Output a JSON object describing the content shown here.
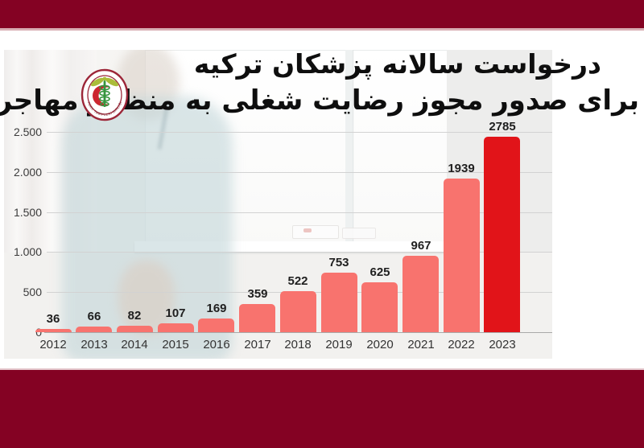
{
  "title": {
    "line1": "درخواست سالانه پزشکان ترکیه",
    "line2": "برای صدور مجوز رضایت شغلی به منظور مهاجرت"
  },
  "logo": {
    "ring_text": "TÜRK TABİPLERİ BİRLİĞİ"
  },
  "colors": {
    "frame_maroon": "#840223",
    "bar_salmon": "#f8736e",
    "bar_highlight_red": "#e11419",
    "gridline_gray": "#d2d2d2"
  },
  "chart_data": {
    "type": "bar",
    "title": "درخواست سالانه پزشکان ترکیه برای صدور مجوز رضایت شغلی به منظور مهاجرت",
    "categories": [
      "2012",
      "2013",
      "2014",
      "2015",
      "2016",
      "2017",
      "2018",
      "2019",
      "2020",
      "2021",
      "2022",
      "2023"
    ],
    "values": [
      36,
      66,
      82,
      107,
      169,
      359,
      522,
      753,
      625,
      967,
      1939,
      2785
    ],
    "bar_color": "#f8736e",
    "highlight_index": 11,
    "highlight_color": "#e11419",
    "y_ticks": [
      {
        "label": "2.500",
        "value": 2500
      },
      {
        "label": "2.000",
        "value": 2000
      },
      {
        "label": "1.500",
        "value": 1500
      },
      {
        "label": "1.000",
        "value": 1000
      },
      {
        "label": "500",
        "value": 500
      },
      {
        "label": "0",
        "value": 0
      }
    ],
    "ylim": [
      0,
      2500
    ],
    "grid": true,
    "legend": false,
    "value_labels_shown": true
  }
}
